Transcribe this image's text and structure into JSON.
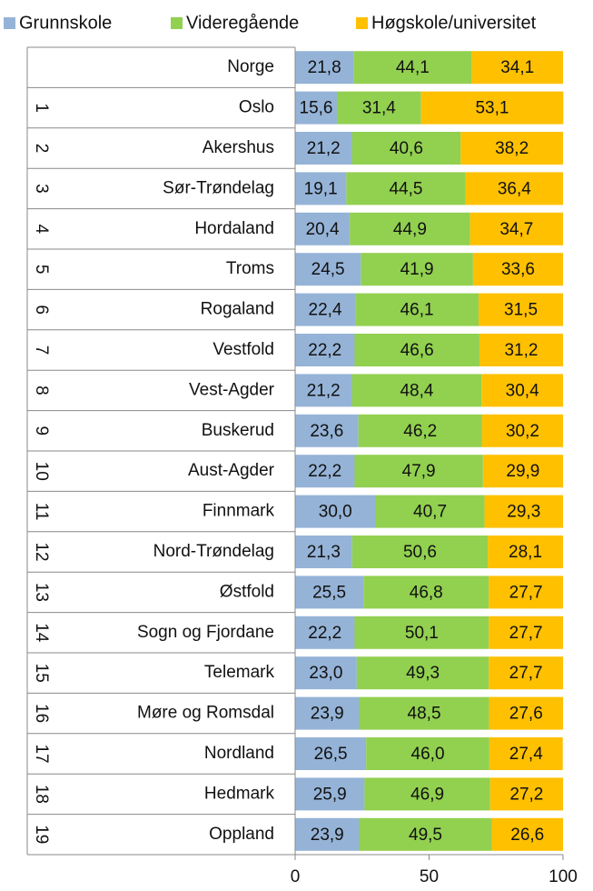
{
  "chart_data": {
    "type": "stacked_bar_horizontal",
    "groups": [
      null,
      1,
      2,
      3,
      4,
      5,
      6,
      7,
      8,
      9,
      10,
      11,
      12,
      13,
      14,
      15,
      16,
      17,
      18,
      19
    ],
    "categories": [
      "Norge",
      "Oslo",
      "Akershus",
      "Sør-Trøndelag",
      "Hordaland",
      "Troms",
      "Rogaland",
      "Vestfold",
      "Vest-Agder",
      "Buskerud",
      "Aust-Agder",
      "Finnmark",
      "Nord-Trøndelag",
      "Østfold",
      "Sogn og Fjordane",
      "Telemark",
      "Møre og Romsdal",
      "Nordland",
      "Hedmark",
      "Oppland"
    ],
    "series": [
      {
        "name": "Grunnskole",
        "color": "#95b3d7",
        "values": [
          21.8,
          15.6,
          21.2,
          19.1,
          20.4,
          24.5,
          22.4,
          22.2,
          21.2,
          23.6,
          22.2,
          30.0,
          21.3,
          25.5,
          22.2,
          23.0,
          23.9,
          26.5,
          25.9,
          23.9
        ],
        "value_labels": [
          "21,8",
          "15,6",
          "21,2",
          "19,1",
          "20,4",
          "24,5",
          "22,4",
          "22,2",
          "21,2",
          "23,6",
          "22,2",
          "30,0",
          "21,3",
          "25,5",
          "22,2",
          "23,0",
          "23,9",
          "26,5",
          "25,9",
          "23,9"
        ]
      },
      {
        "name": "Videregående",
        "color": "#92d050",
        "values": [
          44.1,
          31.4,
          40.6,
          44.5,
          44.9,
          41.9,
          46.1,
          46.6,
          48.4,
          46.2,
          47.9,
          40.7,
          50.6,
          46.8,
          50.1,
          49.3,
          48.5,
          46.0,
          46.9,
          49.5
        ],
        "value_labels": [
          "44,1",
          "31,4",
          "40,6",
          "44,5",
          "44,9",
          "41,9",
          "46,1",
          "46,6",
          "48,4",
          "46,2",
          "47,9",
          "40,7",
          "50,6",
          "46,8",
          "50,1",
          "49,3",
          "48,5",
          "46,0",
          "46,9",
          "49,5"
        ]
      },
      {
        "name": "Høgskole/universitet",
        "color": "#ffc000",
        "values": [
          34.1,
          53.1,
          38.2,
          36.4,
          34.7,
          33.6,
          31.5,
          31.2,
          30.4,
          30.2,
          29.9,
          29.3,
          28.1,
          27.7,
          27.7,
          27.7,
          27.6,
          27.4,
          27.2,
          26.6
        ],
        "value_labels": [
          "34,1",
          "53,1",
          "38,2",
          "36,4",
          "34,7",
          "33,6",
          "31,5",
          "31,2",
          "30,4",
          "30,2",
          "29,9",
          "29,3",
          "28,1",
          "27,7",
          "27,7",
          "27,7",
          "27,6",
          "27,4",
          "27,2",
          "26,6"
        ]
      }
    ],
    "xlim": [
      0,
      100
    ],
    "xticks": [
      0,
      50,
      100
    ],
    "legend": "top"
  }
}
